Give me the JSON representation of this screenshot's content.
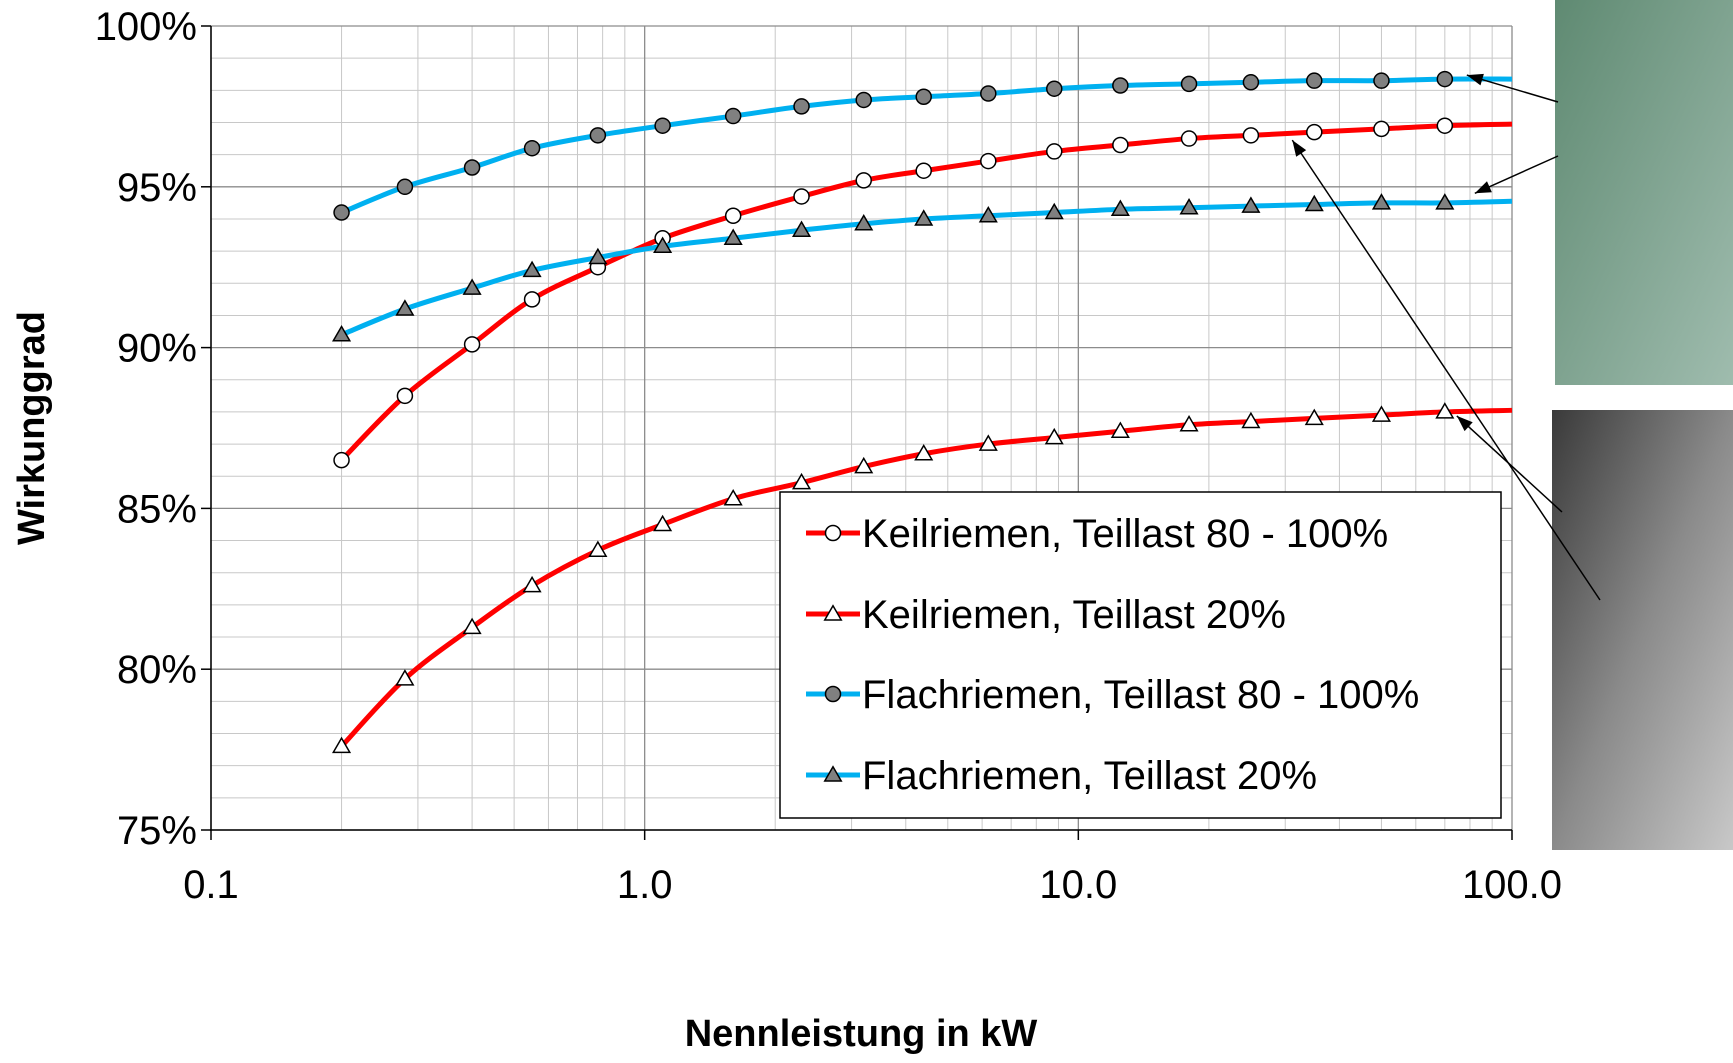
{
  "chart_data": {
    "type": "line",
    "title": "",
    "xlabel": "Nennleistung in kW",
    "ylabel": "Wirkunggrad",
    "x_scale": "log",
    "xlim": [
      0.1,
      100.0
    ],
    "ylim": [
      75,
      100
    ],
    "x_ticks": [
      {
        "value": 0.1,
        "label": "0.1"
      },
      {
        "value": 1.0,
        "label": "1.0"
      },
      {
        "value": 10.0,
        "label": "10.0"
      },
      {
        "value": 100.0,
        "label": "100.0"
      }
    ],
    "y_ticks": [
      {
        "value": 75,
        "label": "75%"
      },
      {
        "value": 80,
        "label": "80%"
      },
      {
        "value": 85,
        "label": "85%"
      },
      {
        "value": 90,
        "label": "90%"
      },
      {
        "value": 95,
        "label": "95%"
      },
      {
        "value": 100,
        "label": "100%"
      }
    ],
    "grid": true,
    "legend_position": "bottom-right",
    "x": [
      0.2,
      0.28,
      0.4,
      0.55,
      0.78,
      1.1,
      1.6,
      2.3,
      3.2,
      4.4,
      6.2,
      8.8,
      12.5,
      18,
      25,
      35,
      50,
      70
    ],
    "x_end": 100.0,
    "series": [
      {
        "name": "Keilriemen, Teillast 80 - 100%",
        "color": "#ff0000",
        "marker": "circle",
        "marker_fill": "#ffffff",
        "values": [
          86.5,
          88.5,
          90.1,
          91.5,
          92.5,
          93.4,
          94.1,
          94.7,
          95.2,
          95.5,
          95.8,
          96.1,
          96.3,
          96.5,
          96.6,
          96.7,
          96.8,
          96.9
        ],
        "end_value": 96.95
      },
      {
        "name": "Keilriemen, Teillast 20%",
        "color": "#ff0000",
        "marker": "triangle",
        "marker_fill": "#ffffff",
        "values": [
          77.6,
          79.7,
          81.3,
          82.6,
          83.7,
          84.5,
          85.3,
          85.8,
          86.3,
          86.7,
          87.0,
          87.2,
          87.4,
          87.6,
          87.7,
          87.8,
          87.9,
          88.0
        ],
        "end_value": 88.05
      },
      {
        "name": "Flachriemen, Teillast 80 - 100%",
        "color": "#00b0f0",
        "marker": "circle",
        "marker_fill": "#808080",
        "values": [
          94.2,
          95.0,
          95.6,
          96.2,
          96.6,
          96.9,
          97.2,
          97.5,
          97.7,
          97.8,
          97.9,
          98.05,
          98.15,
          98.2,
          98.25,
          98.3,
          98.3,
          98.35
        ],
        "end_value": 98.35
      },
      {
        "name": "Flachriemen, Teillast 20%",
        "color": "#00b0f0",
        "marker": "triangle",
        "marker_fill": "#808080",
        "values": [
          90.4,
          91.2,
          91.85,
          92.4,
          92.8,
          93.15,
          93.4,
          93.65,
          93.85,
          94.0,
          94.1,
          94.2,
          94.3,
          94.35,
          94.4,
          94.45,
          94.5,
          94.5
        ],
        "end_value": 94.55
      }
    ]
  }
}
